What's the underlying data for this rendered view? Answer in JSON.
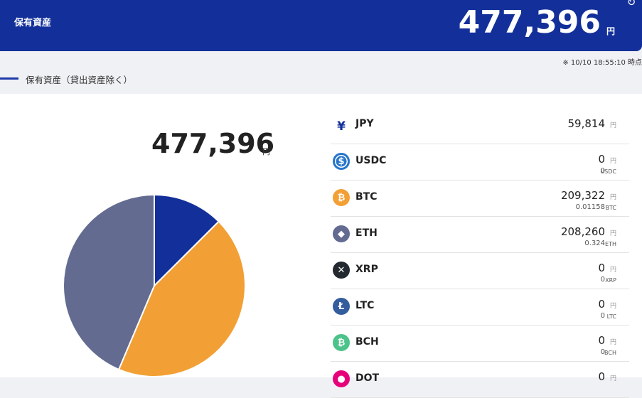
{
  "header": {
    "title": "保有資産",
    "total": "477,396",
    "unit": "円",
    "refresh_icon": "refresh-icon"
  },
  "timestamp": "※ 10/10 18:55:10 時点",
  "section_title": "保有資産（貸出資産除く）",
  "summary": {
    "total": "477,396",
    "unit": "円"
  },
  "colors": {
    "brand": "#13309a",
    "jpy": "#13309a",
    "btc": "#f2a035",
    "eth": "#636b91"
  },
  "assets": [
    {
      "symbol": "JPY",
      "icon": "yen-icon",
      "amount": "59,814",
      "unit": "円",
      "sub": "",
      "sub_unit": ""
    },
    {
      "symbol": "USDC",
      "icon": "usdc-icon",
      "amount": "0",
      "unit": "円",
      "sub": "0",
      "sub_unit": "USDC"
    },
    {
      "symbol": "BTC",
      "icon": "bitcoin-icon",
      "amount": "209,322",
      "unit": "円",
      "sub": "0.01158",
      "sub_unit": "BTC"
    },
    {
      "symbol": "ETH",
      "icon": "ethereum-icon",
      "amount": "208,260",
      "unit": "円",
      "sub": "0.324",
      "sub_unit": "ETH"
    },
    {
      "symbol": "XRP",
      "icon": "xrp-icon",
      "amount": "0",
      "unit": "円",
      "sub": "0",
      "sub_unit": "XRP"
    },
    {
      "symbol": "LTC",
      "icon": "litecoin-icon",
      "amount": "0",
      "unit": "円",
      "sub": "0",
      "sub_unit": "LTC"
    },
    {
      "symbol": "BCH",
      "icon": "bitcoin-cash-icon",
      "amount": "0",
      "unit": "円",
      "sub": "0",
      "sub_unit": "BCH"
    },
    {
      "symbol": "DOT",
      "icon": "polkadot-icon",
      "amount": "0",
      "unit": "円",
      "sub": "",
      "sub_unit": ""
    }
  ],
  "chart_data": {
    "type": "pie",
    "categories": [
      "JPY",
      "BTC",
      "ETH"
    ],
    "values": [
      59814,
      209322,
      208260
    ],
    "colors": [
      "#13309a",
      "#f2a035",
      "#636b91"
    ]
  }
}
